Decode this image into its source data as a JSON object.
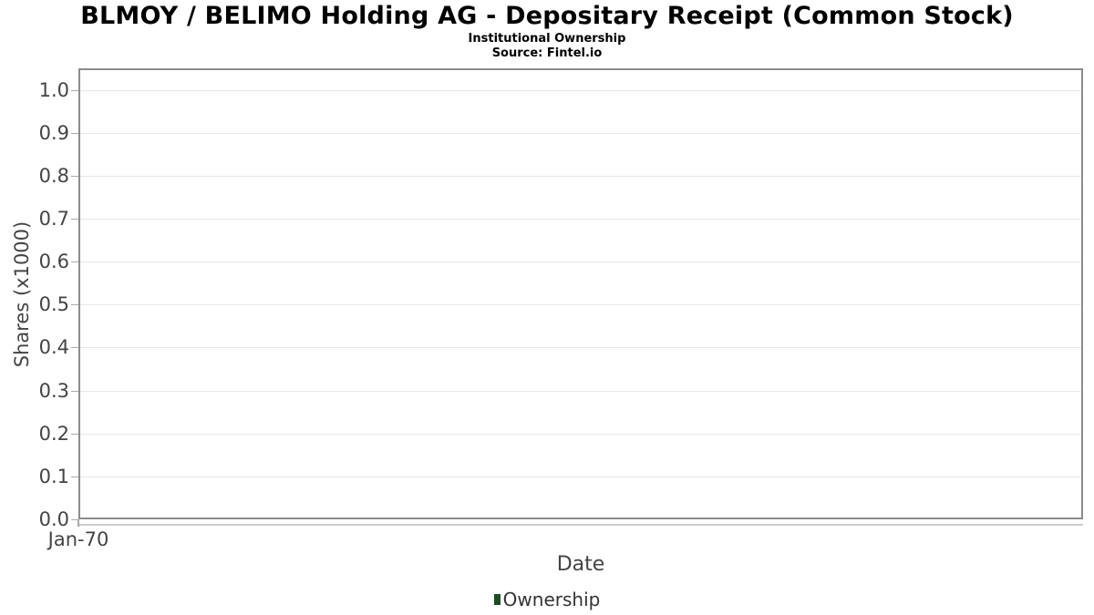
{
  "header": {
    "title": "BLMOY / BELIMO Holding AG - Depositary Receipt (Common Stock)",
    "subtitle": "Institutional Ownership",
    "source": "Source: Fintel.io"
  },
  "chart_data": {
    "type": "line",
    "title": "BLMOY / BELIMO Holding AG - Depositary Receipt (Common Stock)",
    "subtitle": "Institutional Ownership",
    "source": "Source: Fintel.io",
    "xlabel": "Date",
    "ylabel": "Shares (x1000)",
    "xticks": [
      "Jan-70"
    ],
    "yticks": [
      0.0,
      0.1,
      0.2,
      0.3,
      0.4,
      0.5,
      0.6,
      0.7,
      0.8,
      0.9,
      1.0
    ],
    "ytick_labels": [
      "0.0",
      "0.1",
      "0.2",
      "0.3",
      "0.4",
      "0.5",
      "0.6",
      "0.7",
      "0.8",
      "0.9",
      "1.0"
    ],
    "ylim": [
      0,
      1.05
    ],
    "grid": true,
    "grid_color": "#e7e7e7",
    "border_color": "#8c8c8c",
    "legend_position": "bottom",
    "legend": [
      {
        "label": "Ownership",
        "color": "#1d4b24"
      }
    ],
    "series": [
      {
        "name": "Ownership",
        "x": [],
        "values": []
      }
    ]
  }
}
